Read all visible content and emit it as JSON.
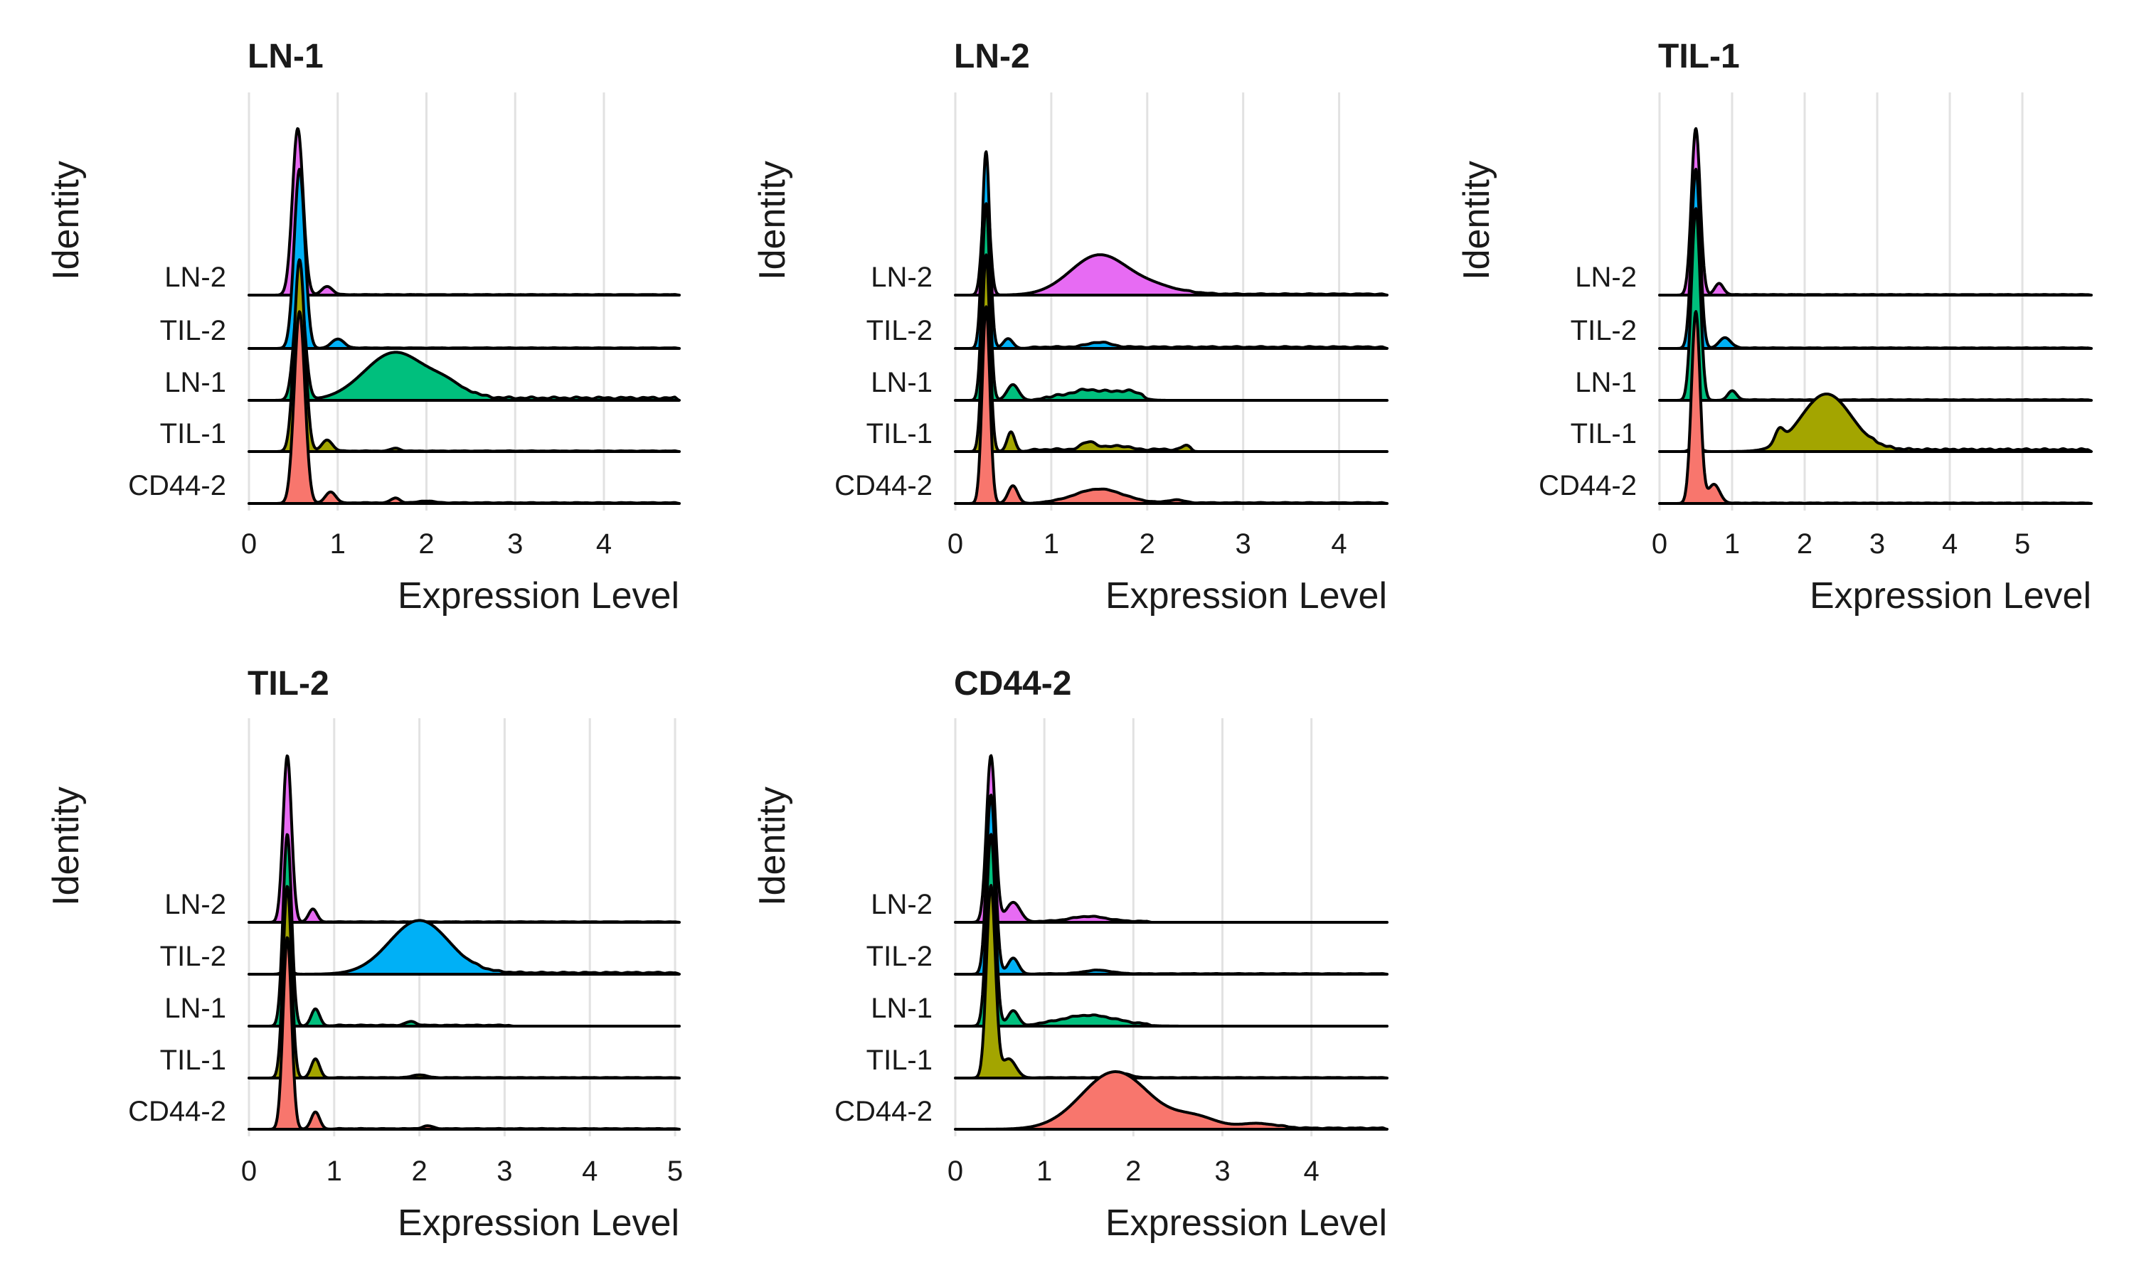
{
  "figure": {
    "chart_data": [
      {
        "type": "area",
        "subtype": "ridgeline",
        "title": "LN-1",
        "xlabel": "Expression Level",
        "ylabel": "Identity",
        "xlim": [
          0,
          4.85
        ],
        "xticks": [
          0,
          1,
          2,
          3,
          4
        ],
        "grid": "vertical",
        "categories": [
          "LN-2",
          "TIL-2",
          "LN-1",
          "TIL-1",
          "CD44-2"
        ],
        "series": [
          {
            "name": "LN-2",
            "color": "#E76BF3",
            "components": [
              [
                0.55,
                0.06,
                1.0,
                0.66
              ],
              [
                0.88,
                0.06,
                0.05,
                0.66
              ]
            ],
            "tail": [
              0.75,
              4.85,
              0.004
            ]
          },
          {
            "name": "TIL-2",
            "color": "#00B0F6",
            "components": [
              [
                0.57,
                0.06,
                1.0,
                0.71
              ],
              [
                1.0,
                0.07,
                0.05,
                0.71
              ]
            ],
            "tail": [
              0.8,
              4.85,
              0.004
            ]
          },
          {
            "name": "LN-1",
            "color": "#00BF7D",
            "components": [
              [
                0.57,
                0.06,
                0.6,
                0.76
              ],
              [
                1.65,
                0.35,
                0.25,
                0.76
              ],
              [
                2.25,
                0.2,
                0.06,
                0.76
              ]
            ],
            "tail": [
              2.4,
              4.85,
              0.018
            ]
          },
          {
            "name": "TIL-1",
            "color": "#A3A500",
            "components": [
              [
                0.57,
                0.06,
                1.0,
                0.76
              ],
              [
                0.88,
                0.06,
                0.06,
                0.76
              ],
              [
                1.65,
                0.05,
                0.015,
                0.76
              ]
            ],
            "tail": [
              0.9,
              4.85,
              0.004
            ]
          },
          {
            "name": "CD44-2",
            "color": "#F8766D",
            "components": [
              [
                0.57,
                0.06,
                1.0,
                0.76
              ],
              [
                0.92,
                0.06,
                0.06,
                0.76
              ],
              [
                1.65,
                0.05,
                0.025,
                0.76
              ],
              [
                2.0,
                0.08,
                0.01,
                0.76
              ]
            ],
            "tail": [
              1.0,
              4.85,
              0.005
            ]
          }
        ]
      },
      {
        "type": "area",
        "subtype": "ridgeline",
        "title": "LN-2",
        "xlabel": "Expression Level",
        "ylabel": "Identity",
        "xlim": [
          0,
          4.5
        ],
        "xticks": [
          0,
          1,
          2,
          3,
          4
        ],
        "grid": "vertical",
        "categories": [
          "LN-2",
          "TIL-2",
          "LN-1",
          "TIL-1",
          "CD44-2"
        ],
        "series": [
          {
            "name": "LN-2",
            "color": "#E76BF3",
            "components": [
              [
                0.32,
                0.04,
                0.6,
                0.72
              ],
              [
                1.5,
                0.3,
                0.22,
                0.72
              ],
              [
                2.1,
                0.25,
                0.04,
                0.72
              ]
            ],
            "tail": [
              2.3,
              4.5,
              0.008
            ]
          },
          {
            "name": "TIL-2",
            "color": "#00B0F6",
            "components": [
              [
                0.32,
                0.04,
                1.0,
                0.78
              ],
              [
                0.55,
                0.05,
                0.05,
                0.78
              ],
              [
                1.5,
                0.12,
                0.025,
                0.78
              ]
            ],
            "tail": [
              0.7,
              4.5,
              0.01
            ]
          },
          {
            "name": "LN-1",
            "color": "#00BF7D",
            "components": [
              [
                0.32,
                0.04,
                1.0,
                0.78
              ],
              [
                0.6,
                0.06,
                0.08,
                0.78
              ],
              [
                1.4,
                0.2,
                0.04,
                0.78
              ],
              [
                1.8,
                0.12,
                0.03,
                0.78
              ]
            ],
            "tail": [
              0.8,
              2.0,
              0.02
            ]
          },
          {
            "name": "TIL-1",
            "color": "#A3A500",
            "components": [
              [
                0.32,
                0.04,
                1.0,
                0.78
              ],
              [
                0.58,
                0.04,
                0.1,
                0.78
              ],
              [
                1.4,
                0.08,
                0.04,
                0.78
              ],
              [
                1.7,
                0.1,
                0.02,
                0.78
              ],
              [
                2.4,
                0.04,
                0.02,
                0.78
              ]
            ],
            "tail": [
              0.7,
              2.5,
              0.015
            ]
          },
          {
            "name": "CD44-2",
            "color": "#F8766D",
            "components": [
              [
                0.32,
                0.04,
                1.0,
                0.78
              ],
              [
                0.6,
                0.05,
                0.09,
                0.78
              ],
              [
                1.5,
                0.25,
                0.07,
                0.78
              ],
              [
                2.3,
                0.08,
                0.015,
                0.78
              ]
            ],
            "tail": [
              0.8,
              4.5,
              0.005
            ]
          }
        ]
      },
      {
        "type": "area",
        "subtype": "ridgeline",
        "title": "TIL-1",
        "xlabel": "Expression Level",
        "ylabel": "Identity",
        "xlim": [
          0,
          5.95
        ],
        "xticks": [
          0,
          1,
          2,
          3,
          4,
          5
        ],
        "grid": "vertical",
        "categories": [
          "LN-2",
          "TIL-2",
          "LN-1",
          "TIL-1",
          "CD44-2"
        ],
        "series": [
          {
            "name": "LN-2",
            "color": "#E76BF3",
            "components": [
              [
                0.5,
                0.06,
                1.0,
                0.66
              ],
              [
                0.82,
                0.06,
                0.07,
                0.66
              ]
            ],
            "tail": [
              0.8,
              5.95,
              0.004
            ]
          },
          {
            "name": "TIL-2",
            "color": "#00B0F6",
            "components": [
              [
                0.5,
                0.06,
                1.0,
                0.71
              ],
              [
                0.9,
                0.08,
                0.06,
                0.71
              ]
            ],
            "tail": [
              0.9,
              5.95,
              0.004
            ]
          },
          {
            "name": "LN-1",
            "color": "#00BF7D",
            "components": [
              [
                0.5,
                0.06,
                1.0,
                0.76
              ],
              [
                1.0,
                0.06,
                0.05,
                0.76
              ]
            ],
            "tail": [
              1.0,
              5.95,
              0.004
            ]
          },
          {
            "name": "TIL-1",
            "color": "#A3A500",
            "components": [
              [
                0.5,
                0.06,
                0.04,
                0.76
              ],
              [
                2.3,
                0.35,
                0.3,
                0.76
              ],
              [
                1.65,
                0.06,
                0.07,
                0.76
              ]
            ],
            "tail": [
              2.8,
              5.95,
              0.015
            ]
          },
          {
            "name": "CD44-2",
            "color": "#F8766D",
            "components": [
              [
                0.5,
                0.06,
                1.0,
                0.76
              ],
              [
                0.75,
                0.08,
                0.1,
                0.76
              ]
            ],
            "tail": [
              0.9,
              5.95,
              0.003
            ]
          }
        ]
      },
      {
        "type": "area",
        "subtype": "ridgeline",
        "title": "TIL-2",
        "xlabel": "Expression Level",
        "ylabel": "Identity",
        "xlim": [
          0,
          5.05
        ],
        "xticks": [
          0,
          1,
          2,
          3,
          4,
          5
        ],
        "grid": "vertical",
        "categories": [
          "LN-2",
          "TIL-2",
          "LN-1",
          "TIL-1",
          "CD44-2"
        ],
        "series": [
          {
            "name": "LN-2",
            "color": "#E76BF3",
            "components": [
              [
                0.45,
                0.05,
                1.0,
                0.66
              ],
              [
                0.75,
                0.05,
                0.08,
                0.66
              ]
            ],
            "tail": [
              0.8,
              5.05,
              0.004
            ]
          },
          {
            "name": "TIL-2",
            "color": "#00B0F6",
            "components": [
              [
                0.45,
                0.05,
                0.03,
                0.71
              ],
              [
                2.0,
                0.35,
                0.3,
                0.71
              ]
            ],
            "tail": [
              2.5,
              5.05,
              0.012
            ]
          },
          {
            "name": "LN-1",
            "color": "#00BF7D",
            "components": [
              [
                0.45,
                0.05,
                1.0,
                0.76
              ],
              [
                0.78,
                0.05,
                0.09,
                0.76
              ],
              [
                1.9,
                0.06,
                0.02,
                0.76
              ]
            ],
            "tail": [
              0.9,
              3.1,
              0.006
            ]
          },
          {
            "name": "TIL-1",
            "color": "#A3A500",
            "components": [
              [
                0.45,
                0.05,
                1.0,
                0.76
              ],
              [
                0.78,
                0.05,
                0.1,
                0.76
              ],
              [
                2.0,
                0.08,
                0.015,
                0.76
              ]
            ],
            "tail": [
              0.9,
              5.05,
              0.003
            ]
          },
          {
            "name": "CD44-2",
            "color": "#F8766D",
            "components": [
              [
                0.45,
                0.05,
                1.0,
                0.76
              ],
              [
                0.78,
                0.05,
                0.09,
                0.76
              ],
              [
                2.1,
                0.06,
                0.015,
                0.76
              ]
            ],
            "tail": [
              0.9,
              5.05,
              0.004
            ]
          }
        ]
      },
      {
        "type": "area",
        "subtype": "ridgeline",
        "title": "CD44-2",
        "xlabel": "Expression Level",
        "ylabel": "Identity",
        "xlim": [
          0,
          4.85
        ],
        "xticks": [
          0,
          1,
          2,
          3,
          4
        ],
        "grid": "vertical",
        "categories": [
          "LN-2",
          "TIL-2",
          "LN-1",
          "TIL-1",
          "CD44-2"
        ],
        "series": [
          {
            "name": "LN-2",
            "color": "#E76BF3",
            "components": [
              [
                0.4,
                0.05,
                1.0,
                0.66
              ],
              [
                0.65,
                0.08,
                0.12,
                0.66
              ],
              [
                1.5,
                0.2,
                0.03,
                0.66
              ]
            ],
            "tail": [
              0.8,
              2.2,
              0.008
            ]
          },
          {
            "name": "TIL-2",
            "color": "#00B0F6",
            "components": [
              [
                0.4,
                0.05,
                1.0,
                0.71
              ],
              [
                0.65,
                0.06,
                0.09,
                0.71
              ],
              [
                1.6,
                0.15,
                0.02,
                0.71
              ]
            ],
            "tail": [
              0.8,
              4.85,
              0.004
            ]
          },
          {
            "name": "LN-1",
            "color": "#00BF7D",
            "components": [
              [
                0.4,
                0.05,
                1.0,
                0.76
              ],
              [
                0.65,
                0.06,
                0.08,
                0.76
              ],
              [
                1.5,
                0.3,
                0.05,
                0.76
              ]
            ],
            "tail": [
              0.8,
              2.2,
              0.01
            ]
          },
          {
            "name": "TIL-1",
            "color": "#A3A500",
            "components": [
              [
                0.4,
                0.05,
                1.0,
                0.76
              ],
              [
                0.6,
                0.08,
                0.1,
                0.76
              ],
              [
                1.9,
                0.08,
                0.02,
                0.76
              ]
            ],
            "tail": [
              0.8,
              4.85,
              0.003
            ]
          },
          {
            "name": "CD44-2",
            "color": "#F8766D",
            "components": [
              [
                1.8,
                0.38,
                0.3,
                0.76
              ],
              [
                2.7,
                0.25,
                0.06,
                0.76
              ],
              [
                3.4,
                0.2,
                0.03,
                0.76
              ]
            ],
            "tail": [
              3.5,
              4.85,
              0.008
            ]
          }
        ]
      }
    ]
  }
}
